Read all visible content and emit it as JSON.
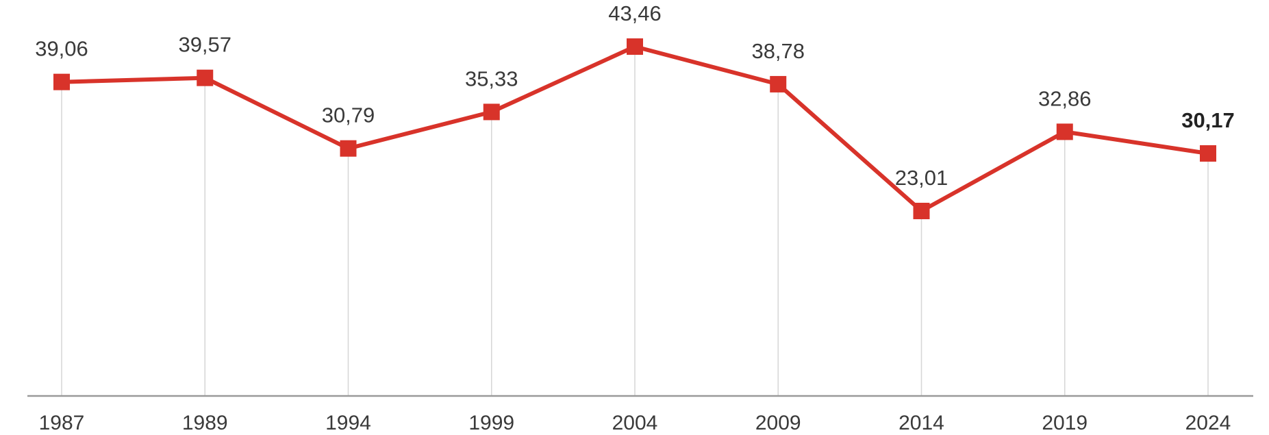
{
  "chart_data": {
    "type": "line",
    "categories": [
      "1987",
      "1989",
      "1994",
      "1999",
      "2004",
      "2009",
      "2014",
      "2019",
      "2024"
    ],
    "values": [
      39.06,
      39.57,
      30.79,
      35.33,
      43.46,
      38.78,
      23.01,
      32.86,
      30.17
    ],
    "data_labels": [
      "39,06",
      "39,57",
      "30,79",
      "35,33",
      "43,46",
      "38,78",
      "23,01",
      "32,86",
      "30,17"
    ],
    "highlighted_index": 8,
    "title": "",
    "xlabel": "",
    "ylabel": "",
    "y_axis_visible": false,
    "grid": "vertical drop lines",
    "legend": "none",
    "colors": {
      "line": "#d8332a",
      "marker": "#d8332a",
      "drop_line": "#d6d6d6",
      "baseline": "#9a9a9a",
      "text": "#3a3a3a"
    }
  }
}
